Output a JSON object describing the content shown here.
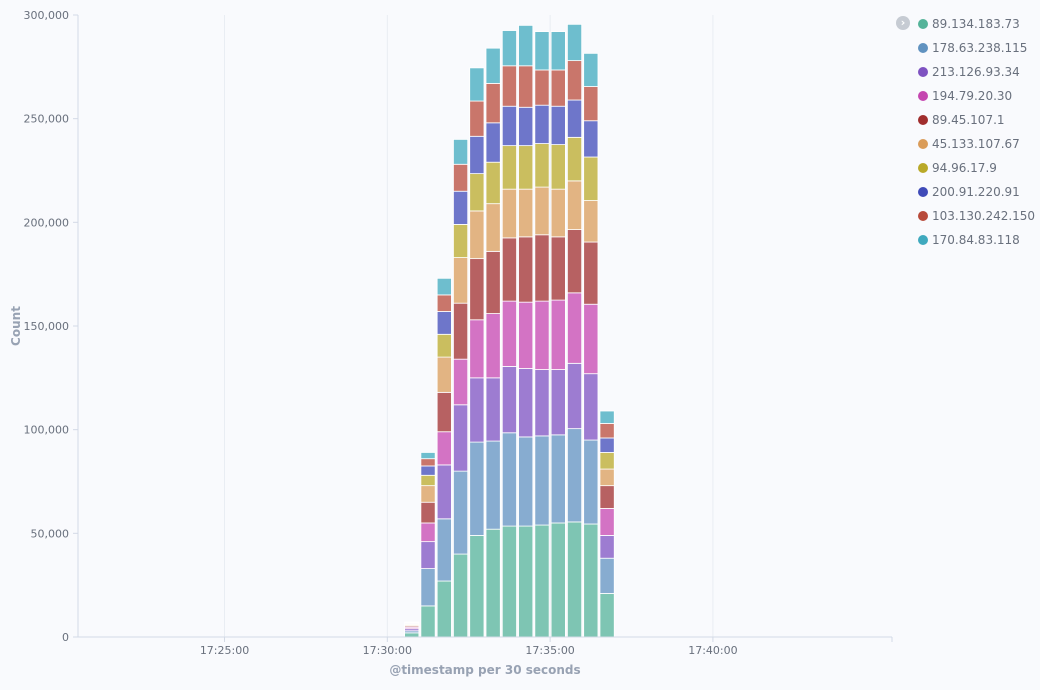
{
  "chart_data": {
    "type": "bar",
    "stacked": true,
    "xlabel": "@timestamp per 30 seconds",
    "ylabel": "Count",
    "ylim": [
      0,
      300000
    ],
    "yticks": [
      0,
      50000,
      100000,
      150000,
      200000,
      250000,
      300000
    ],
    "ytick_labels": [
      "0",
      "50,000",
      "100,000",
      "150,000",
      "200,000",
      "250,000",
      "300,000"
    ],
    "xlim": [
      "17:20:30",
      "17:45:30"
    ],
    "xticks": [
      "17:25:00",
      "17:30:00",
      "17:35:00",
      "17:40:00"
    ],
    "grid": "vertical",
    "legend_position": "right",
    "categories": [
      "17:30:30",
      "17:31:00",
      "17:31:30",
      "17:32:00",
      "17:32:30",
      "17:33:00",
      "17:33:30",
      "17:34:00",
      "17:34:30",
      "17:35:00",
      "17:35:30",
      "17:36:00",
      "17:36:30"
    ],
    "series": [
      {
        "name": "89.134.183.73",
        "color": "#54b399",
        "values": [
          2000,
          15000,
          27000,
          40000,
          49000,
          52000,
          53500,
          53500,
          54000,
          55000,
          55500,
          54500,
          21000
        ]
      },
      {
        "name": "178.63.238.115",
        "color": "#6092c0",
        "values": [
          1000,
          18000,
          30000,
          40000,
          45000,
          42500,
          45000,
          43000,
          43000,
          42500,
          45000,
          40500,
          17000
        ]
      },
      {
        "name": "213.126.93.34",
        "color": "#7e52c1",
        "values": [
          1000,
          13000,
          26000,
          32000,
          31000,
          30500,
          32000,
          33000,
          32000,
          31500,
          31500,
          32000,
          11000
        ]
      },
      {
        "name": "194.79.20.30",
        "color": "#c546b0",
        "values": [
          700,
          9000,
          16000,
          22000,
          28000,
          31000,
          31500,
          32000,
          33000,
          33500,
          34000,
          33500,
          13000
        ]
      },
      {
        "name": "89.45.107.1",
        "color": "#a02d2d",
        "values": [
          600,
          10000,
          19000,
          27000,
          29500,
          30000,
          30500,
          31500,
          32000,
          30500,
          30500,
          30000,
          11000
        ]
      },
      {
        "name": "45.133.107.67",
        "color": "#da9c59",
        "values": [
          500,
          8000,
          17000,
          22000,
          23000,
          23000,
          23500,
          23000,
          23000,
          23000,
          23500,
          20000,
          8000
        ]
      },
      {
        "name": "94.96.17.9",
        "color": "#b9a929",
        "values": [
          400,
          5000,
          11000,
          16000,
          18000,
          20000,
          21000,
          21000,
          21000,
          21500,
          21000,
          21000,
          8000
        ]
      },
      {
        "name": "200.91.220.91",
        "color": "#3f4ab8",
        "values": [
          400,
          4500,
          11000,
          16000,
          18000,
          19000,
          19000,
          18500,
          18500,
          18500,
          18000,
          17500,
          7000
        ]
      },
      {
        "name": "103.130.242.150",
        "color": "#b84a3a",
        "values": [
          300,
          3500,
          8000,
          13000,
          17000,
          19000,
          19500,
          20000,
          17000,
          17500,
          19000,
          16500,
          7000
        ]
      },
      {
        "name": "170.84.83.118",
        "color": "#3fa9be",
        "values": [
          300,
          3000,
          8000,
          12000,
          16000,
          17000,
          17000,
          19500,
          18500,
          18500,
          17500,
          16000,
          6000
        ]
      }
    ]
  }
}
